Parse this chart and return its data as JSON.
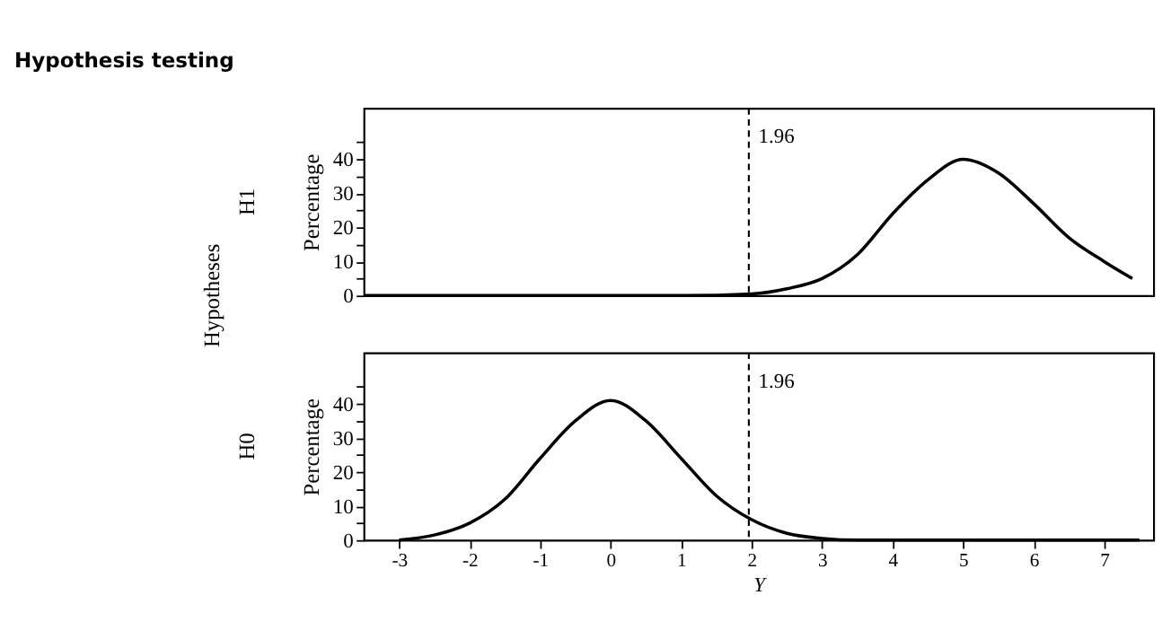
{
  "chart_data": [
    {
      "type": "line",
      "title": "Hypothesis testing",
      "ylabel": "Percentage",
      "annotations": [
        "Hypotheses",
        "H1"
      ],
      "series": [
        {
          "color": "#000000",
          "x": [
            -3.5,
            1,
            2,
            2.5,
            3,
            3.5,
            4,
            4.5,
            5,
            5.5,
            6,
            6.5,
            7,
            7.4
          ],
          "values": [
            0,
            0,
            0.5,
            2,
            5,
            12,
            24,
            34,
            40,
            36,
            27,
            17,
            10,
            5
          ]
        }
      ],
      "xlim": [
        -3.5,
        7.7
      ],
      "ylim": [
        0,
        55
      ],
      "yticks": [
        0,
        {
          "value": 5,
          "label": null
        },
        10,
        {
          "value": 15,
          "label": null
        },
        20,
        {
          "value": 25,
          "label": null
        },
        30,
        {
          "value": 35,
          "label": null
        },
        40,
        {
          "value": 45,
          "label": null
        }
      ],
      "ref_lines": [
        {
          "axis": "x",
          "value": 1.96,
          "label": "1.96",
          "color": "#000000",
          "line_style": "dashed"
        }
      ],
      "tick_labels": "y",
      "grid": false,
      "marker": "none",
      "line_style": "solid"
    },
    {
      "type": "line",
      "ylabel": "Percentage",
      "xlabel": "Y",
      "annotations": [
        "H0"
      ],
      "series": [
        {
          "color": "#000000",
          "x": [
            -3,
            -2.5,
            -2,
            -1.5,
            -1,
            -0.5,
            0,
            0.5,
            1,
            1.5,
            2,
            2.5,
            3,
            3.5,
            7.5
          ],
          "values": [
            0,
            1.5,
            5,
            12,
            24,
            35,
            41,
            35,
            24,
            13,
            6,
            2,
            0.5,
            0,
            0
          ]
        }
      ],
      "xlim": [
        -3.5,
        7.7
      ],
      "ylim": [
        0,
        55
      ],
      "xticks": [
        -3,
        -2,
        -1,
        0,
        1,
        2,
        3,
        4,
        5,
        6,
        7
      ],
      "yticks": [
        0,
        {
          "value": 5,
          "label": null
        },
        10,
        {
          "value": 15,
          "label": null
        },
        20,
        {
          "value": 25,
          "label": null
        },
        30,
        {
          "value": 35,
          "label": null
        },
        40,
        {
          "value": 45,
          "label": null
        }
      ],
      "ref_lines": [
        {
          "axis": "x",
          "value": 1.96,
          "label": "1.96",
          "color": "#000000",
          "line_style": "dashed"
        }
      ],
      "grid": false,
      "marker": "none",
      "line_style": "solid"
    }
  ]
}
